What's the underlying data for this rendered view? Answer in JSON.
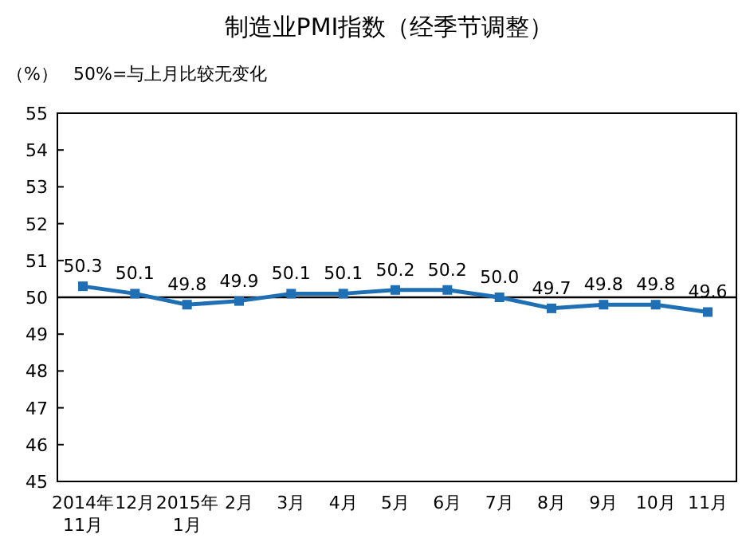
{
  "chart_data": {
    "type": "line",
    "title": "制造业PMI指数（经季节调整）",
    "ylabel": "（%）",
    "annotations": [
      "50%=与上月比较无变化"
    ],
    "categories": [
      "2014年\n11月",
      "12月",
      "2015年\n1月",
      "2月",
      "3月",
      "4月",
      "5月",
      "6月",
      "7月",
      "8月",
      "9月",
      "10月",
      "11月"
    ],
    "series": [
      {
        "color": "#1f6fb5",
        "values": [
          50.3,
          50.1,
          49.8,
          49.9,
          50.1,
          50.1,
          50.2,
          50.2,
          50.0,
          49.7,
          49.8,
          49.8,
          49.6
        ],
        "value_labels": [
          "50.3",
          "50.1",
          "49.8",
          "49.9",
          "50.1",
          "50.1",
          "50.2",
          "50.2",
          "50.0",
          "49.7",
          "49.8",
          "49.8",
          "49.6"
        ]
      }
    ],
    "ylim": [
      45,
      55
    ],
    "yticks": [
      45,
      46,
      47,
      48,
      49,
      50,
      51,
      52,
      53,
      54,
      55
    ],
    "ref_lines": [
      {
        "axis": "y",
        "value": 50,
        "color": "#000000"
      }
    ],
    "marker": "square",
    "grid": false
  }
}
